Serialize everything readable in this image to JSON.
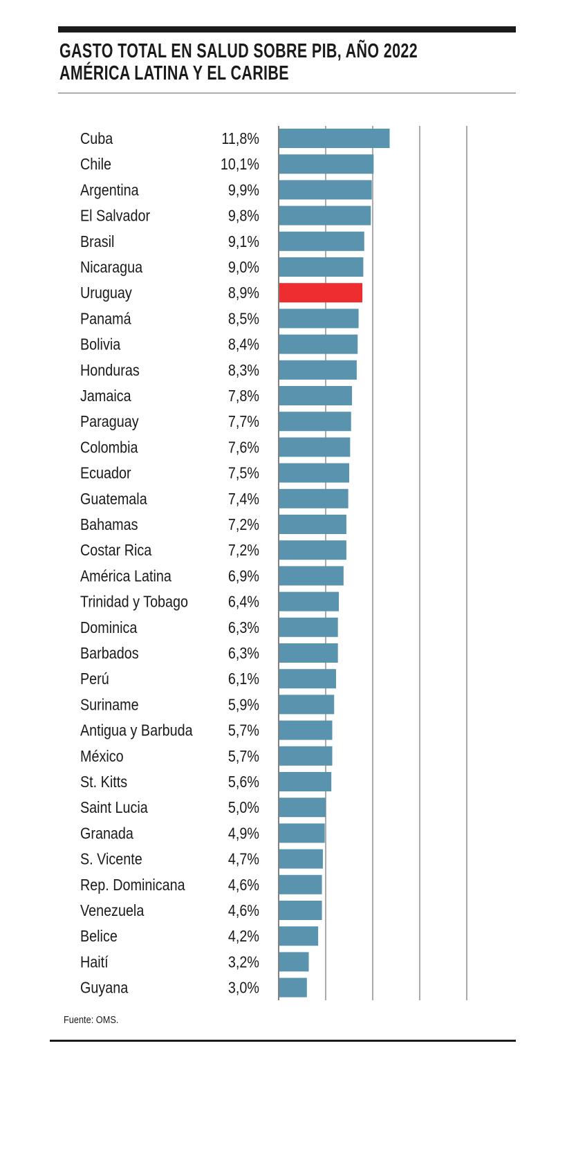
{
  "chart_data": {
    "type": "bar",
    "orientation": "horizontal",
    "title": "GASTO TOTAL EN SALUD SOBRE PIB, AÑO 2022",
    "subtitle": "AMÉRICA LATINA Y EL CARIBE",
    "source": "Fuente: OMS.",
    "xlim": [
      0,
      20
    ],
    "grid": true,
    "colors": {
      "default": "#5a93ad",
      "highlight": "#ee2d31"
    },
    "highlight": "Uruguay",
    "categories": [
      "Cuba",
      "Chile",
      "Argentina",
      "El Salvador",
      "Brasil",
      "Nicaragua",
      "Uruguay",
      "Panamá",
      "Bolivia",
      "Honduras",
      "Jamaica",
      "Paraguay",
      "Colombia",
      "Ecuador",
      "Guatemala",
      "Bahamas",
      "Costar Rica",
      "América Latina",
      "Trinidad y Tobago",
      "Dominica",
      "Barbados",
      "Perú",
      "Suriname",
      "Antigua y Barbuda",
      "México",
      "St. Kitts",
      "Saint Lucia",
      "Granada",
      "S. Vicente",
      "Rep. Dominicana",
      "Venezuela",
      "Belice",
      "Haití",
      "Guyana"
    ],
    "values": [
      11.8,
      10.1,
      9.9,
      9.8,
      9.1,
      9.0,
      8.9,
      8.5,
      8.4,
      8.3,
      7.8,
      7.7,
      7.6,
      7.5,
      7.4,
      7.2,
      7.2,
      6.9,
      6.4,
      6.3,
      6.3,
      6.1,
      5.9,
      5.7,
      5.7,
      5.6,
      5.0,
      4.9,
      4.7,
      4.6,
      4.6,
      4.2,
      3.2,
      3.0
    ],
    "value_labels": [
      "11,8%",
      "10,1%",
      "9,9%",
      "9,8%",
      "9,1%",
      "9,0%",
      "8,9%",
      "8,5%",
      "8,4%",
      "8,3%",
      "7,8%",
      "7,7%",
      "7,6%",
      "7,5%",
      "7,4%",
      "7,2%",
      "7,2%",
      "6,9%",
      "6,4%",
      "6,3%",
      "6,3%",
      "6,1%",
      "5,9%",
      "5,7%",
      "5,7%",
      "5,6%",
      "5,0%",
      "4,9%",
      "4,7%",
      "4,6%",
      "4,6%",
      "4,2%",
      "3,2%",
      "3,0%"
    ]
  }
}
